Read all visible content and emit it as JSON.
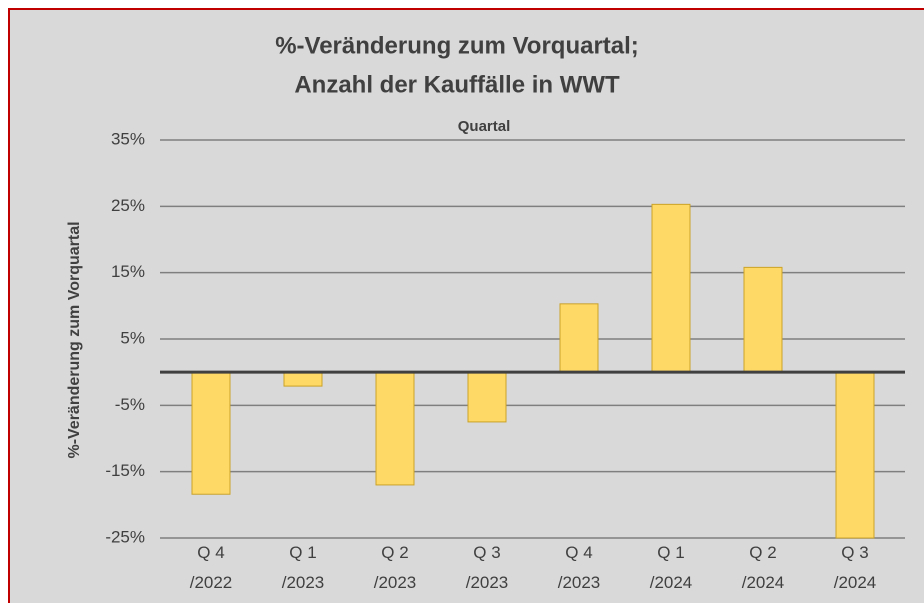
{
  "chart_data": {
    "type": "bar",
    "title": [
      "%-Veränderung zum Vorquartal;",
      "Anzahl der Kauffälle in WWT"
    ],
    "x_label": "Quartal",
    "y_label": "%-Veränderung zum Vorquartal",
    "categories": [
      "Q 4 /2022",
      "Q 1 /2023",
      "Q 2 /2023",
      "Q 3 /2023",
      "Q 4 /2023",
      "Q 1 /2024",
      "Q 2 /2024",
      "Q 3 /2024"
    ],
    "values": [
      -18.4,
      -2.1,
      -17.0,
      -7.5,
      10.3,
      25.3,
      15.8,
      -25
    ],
    "color": "#ffd966",
    "ylim": [
      -25,
      35
    ],
    "yticks": [
      {
        "value": -25,
        "label": "-25%"
      },
      {
        "value": -15,
        "label": "-15%"
      },
      {
        "value": -5,
        "label": "-5%"
      },
      {
        "value": 5,
        "label": "5%"
      },
      {
        "value": 15,
        "label": "15%"
      },
      {
        "value": 25,
        "label": "25%"
      },
      {
        "value": 35,
        "label": "35%"
      }
    ],
    "grid": true
  }
}
